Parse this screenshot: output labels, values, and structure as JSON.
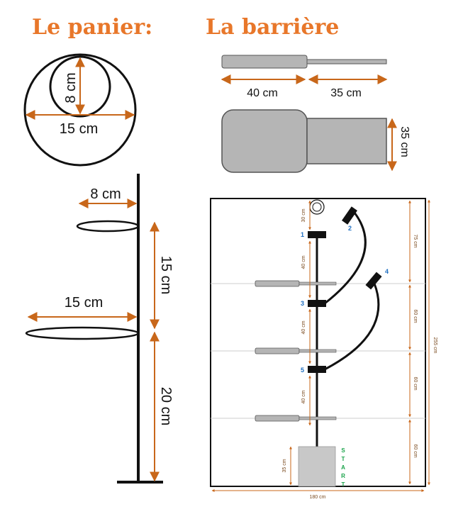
{
  "colors": {
    "accent": "#e8772a",
    "arrow": "#c8671a",
    "blue": "#1f6fc2",
    "green": "#1aa34a",
    "gray": "#b5b5b5"
  },
  "titles": {
    "basket": "Le panier:",
    "barrier": "La barrière"
  },
  "basket": {
    "inner_diameter": "8 cm",
    "outer_diameter": "15 cm"
  },
  "barrier": {
    "handle_length": "40 cm",
    "rod_length": "35 cm",
    "height": "35 cm"
  },
  "pole": {
    "small_ring": "8 cm",
    "large_ring": "15 cm",
    "gap": "15 cm",
    "base": "20 cm"
  },
  "course": {
    "top": "30 cm",
    "spacing": "40 cm",
    "right_segments": [
      "75 cm",
      "60 cm",
      "60 cm",
      "60 cm"
    ],
    "total_height": "255 cm",
    "width": "180 cm",
    "start_height": "35 cm",
    "start_label": [
      "S",
      "T",
      "A",
      "R",
      "T"
    ],
    "stations": [
      "1",
      "2",
      "3",
      "4",
      "5"
    ]
  }
}
